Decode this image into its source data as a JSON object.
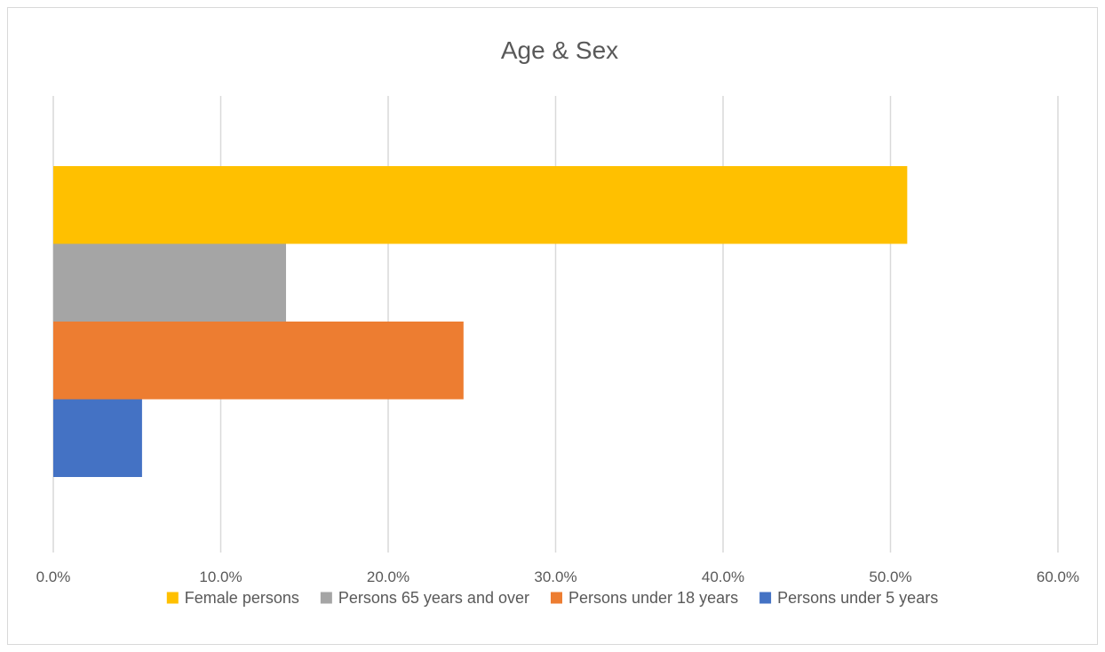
{
  "chart_data": {
    "type": "bar",
    "orientation": "horizontal",
    "title": "Age & Sex",
    "xlabel": "",
    "ylabel": "",
    "xlim": [
      0,
      0.6
    ],
    "x_ticks": [
      "0.0%",
      "10.0%",
      "20.0%",
      "30.0%",
      "40.0%",
      "50.0%",
      "60.0%"
    ],
    "grid": true,
    "legend_position": "bottom",
    "series": [
      {
        "name": "Female persons",
        "value": 0.51,
        "color": "#FFC000"
      },
      {
        "name": "Persons 65 years and over",
        "value": 0.139,
        "color": "#A5A5A5"
      },
      {
        "name": "Persons under 18 years",
        "value": 0.245,
        "color": "#ED7D31"
      },
      {
        "name": "Persons under 5 years",
        "value": 0.053,
        "color": "#4472C4"
      }
    ]
  }
}
